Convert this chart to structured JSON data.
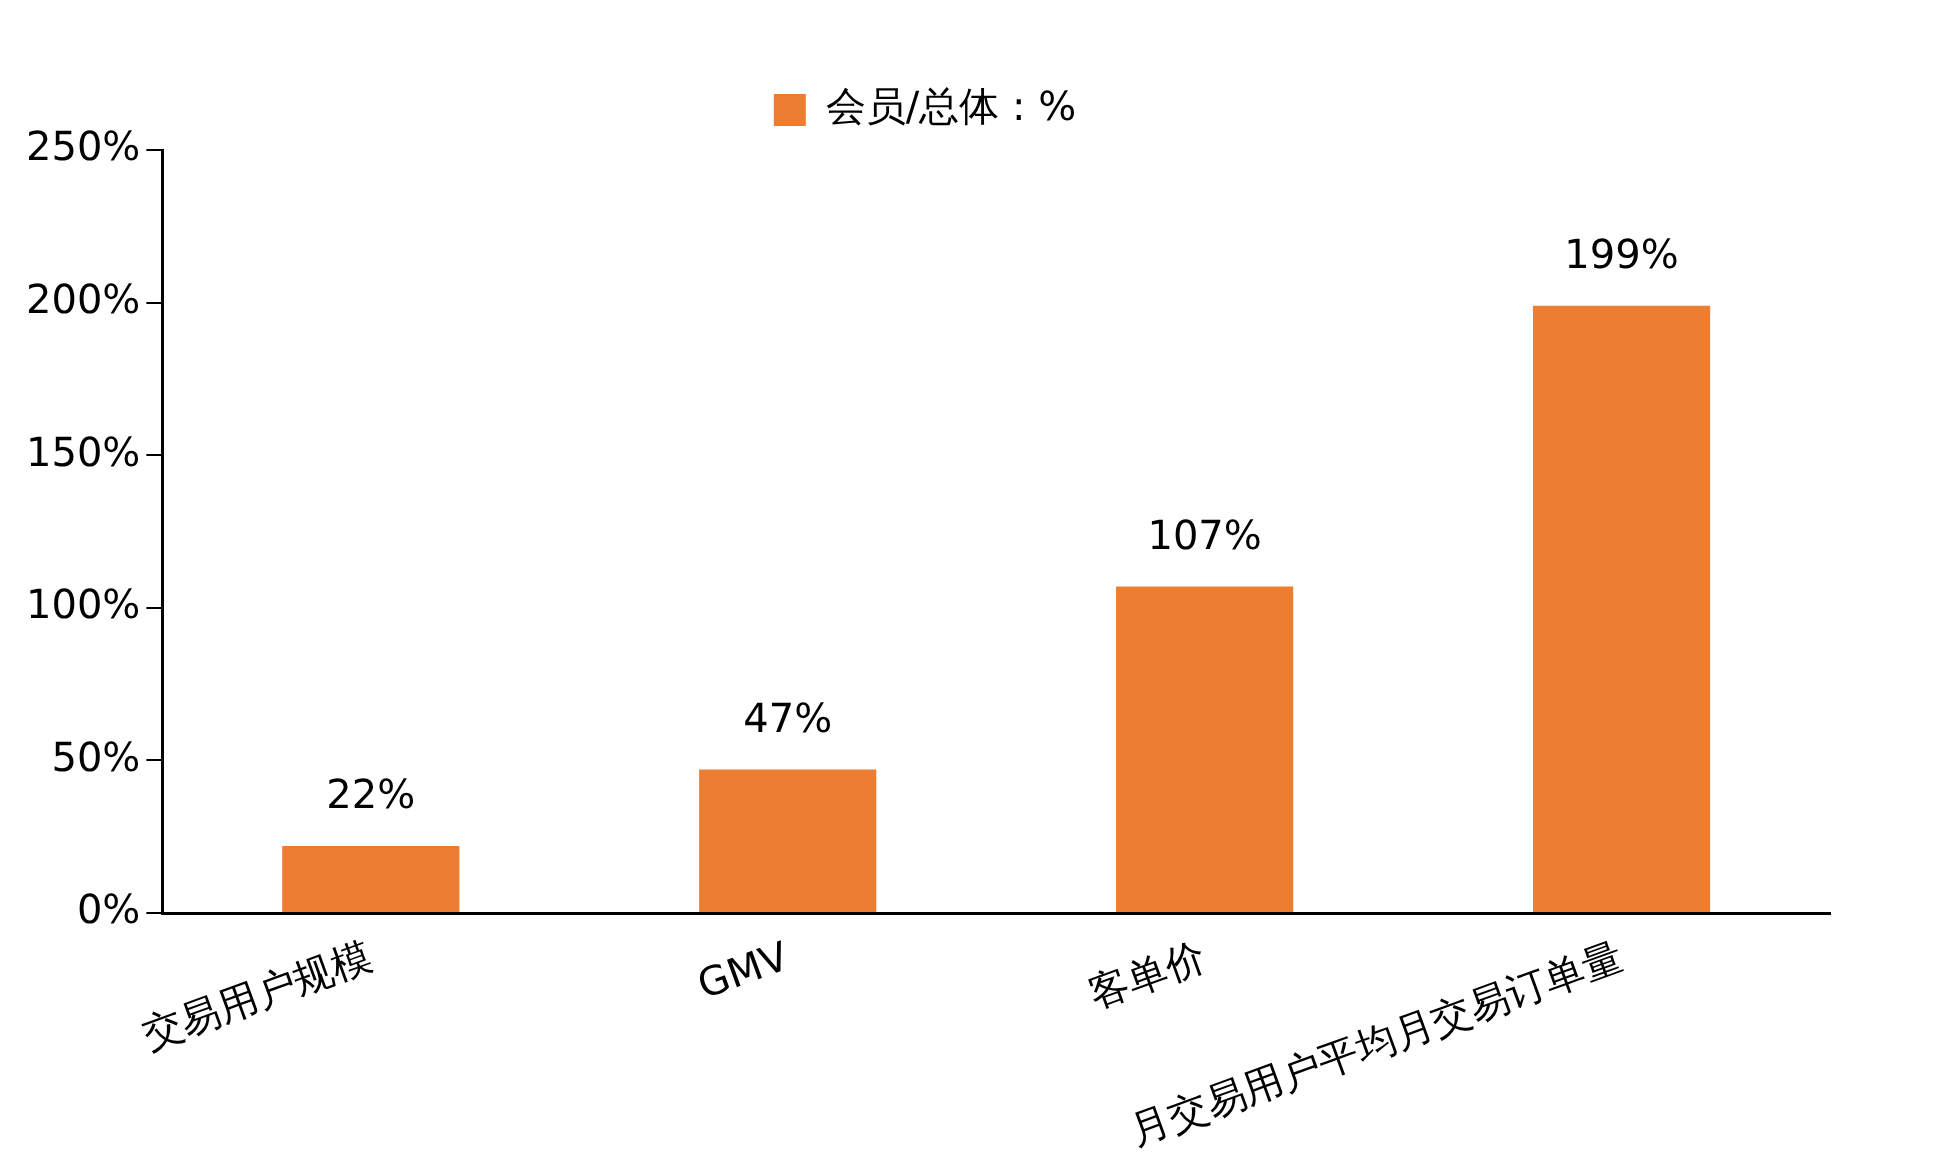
{
  "chart_data": {
    "type": "bar",
    "categories": [
      "交易用户规模",
      "GMV",
      "客单价",
      "月交易用户平均月交易订单量"
    ],
    "series": [
      {
        "name": "会员/总体 : %",
        "color": "#ed7d31",
        "values": [
          22,
          47,
          107,
          199
        ],
        "value_labels": [
          "22%",
          "47%",
          "107%",
          "199%"
        ]
      }
    ],
    "ylim": [
      0,
      250
    ],
    "yticks": [
      {
        "value": 0,
        "label": "0%"
      },
      {
        "value": 50,
        "label": "50%"
      },
      {
        "value": 100,
        "label": "100%"
      },
      {
        "value": 150,
        "label": "150%"
      },
      {
        "value": 200,
        "label": "200%"
      },
      {
        "value": 250,
        "label": "250%"
      }
    ],
    "grid": false,
    "legend": "top"
  }
}
